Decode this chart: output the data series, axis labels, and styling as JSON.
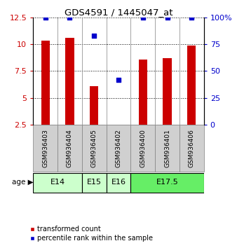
{
  "title": "GDS4591 / 1445047_at",
  "samples": [
    "GSM936403",
    "GSM936404",
    "GSM936405",
    "GSM936402",
    "GSM936400",
    "GSM936401",
    "GSM936406"
  ],
  "bar_values": [
    10.3,
    10.6,
    6.1,
    2.4,
    8.6,
    8.7,
    9.9
  ],
  "percentile_right": [
    100,
    100,
    83,
    42,
    100,
    100,
    100
  ],
  "bar_color": "#cc0000",
  "dot_color": "#0000cc",
  "ylim_left": [
    2.5,
    12.5
  ],
  "ylim_right": [
    0,
    100
  ],
  "yticks_left": [
    2.5,
    5.0,
    7.5,
    10.0,
    12.5
  ],
  "ytick_labels_left": [
    "2.5",
    "5",
    "7.5",
    "10",
    "12.5"
  ],
  "yticks_right": [
    0,
    25,
    50,
    75,
    100
  ],
  "ytick_labels_right": [
    "0",
    "25",
    "50",
    "75",
    "100%"
  ],
  "age_groups": [
    {
      "label": "E14",
      "samples": [
        0,
        1
      ],
      "color": "#ccffcc"
    },
    {
      "label": "E15",
      "samples": [
        2
      ],
      "color": "#ccffcc"
    },
    {
      "label": "E16",
      "samples": [
        3
      ],
      "color": "#ccffcc"
    },
    {
      "label": "E17.5",
      "samples": [
        4,
        5,
        6
      ],
      "color": "#66ee66"
    }
  ],
  "legend_bar_label": "transformed count",
  "legend_dot_label": "percentile rank within the sample",
  "bar_width": 0.35,
  "sample_box_color": "#d0d0d0",
  "plot_bg_color": "#ffffff"
}
